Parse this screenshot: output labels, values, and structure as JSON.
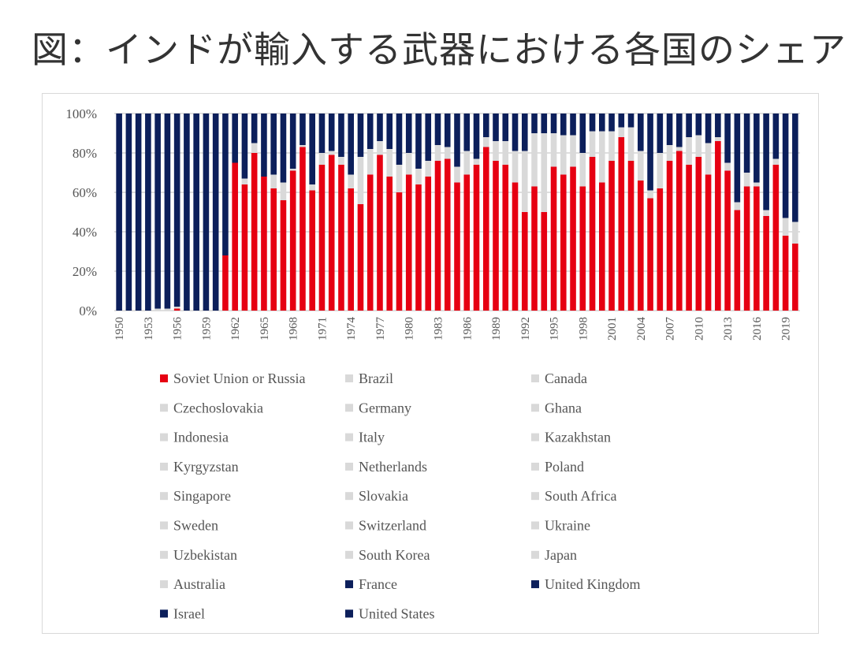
{
  "title": "図：インドが輸入する武器における各国のシェア",
  "colors": {
    "russia": "#e60012",
    "others": "#d9d9d9",
    "western": "#0c1f5b",
    "grid": "#bfbfbf"
  },
  "chart_data": {
    "type": "bar",
    "stacked": true,
    "percent": true,
    "ylim": [
      0,
      100
    ],
    "yticks": [
      "0%",
      "20%",
      "40%",
      "60%",
      "80%",
      "100%"
    ],
    "grid": true,
    "legend_position": "bottom",
    "categories": [
      1950,
      1951,
      1952,
      1953,
      1954,
      1955,
      1956,
      1957,
      1958,
      1959,
      1960,
      1961,
      1962,
      1963,
      1964,
      1965,
      1966,
      1967,
      1968,
      1969,
      1970,
      1971,
      1972,
      1973,
      1974,
      1975,
      1976,
      1977,
      1978,
      1979,
      1980,
      1981,
      1982,
      1983,
      1984,
      1985,
      1986,
      1987,
      1988,
      1989,
      1990,
      1991,
      1992,
      1993,
      1994,
      1995,
      1996,
      1997,
      1998,
      1999,
      2000,
      2001,
      2002,
      2003,
      2004,
      2005,
      2006,
      2007,
      2008,
      2009,
      2010,
      2011,
      2012,
      2013,
      2014,
      2015,
      2016,
      2017,
      2018,
      2019,
      2020
    ],
    "xtick_labels": [
      "1950",
      "1953",
      "1956",
      "1959",
      "1962",
      "1965",
      "1968",
      "1971",
      "1974",
      "1977",
      "1980",
      "1983",
      "1986",
      "1989",
      "1992",
      "1995",
      "1998",
      "2001",
      "2004",
      "2007",
      "2010",
      "2013",
      "2016",
      "2019"
    ],
    "series": [
      {
        "name": "Soviet Union or Russia",
        "group": "russia",
        "values": [
          0,
          0,
          0,
          0,
          0,
          0,
          1,
          0,
          0,
          0,
          0,
          28,
          75,
          64,
          80,
          68,
          62,
          56,
          71,
          83,
          61,
          74,
          79,
          74,
          62,
          54,
          69,
          79,
          68,
          60,
          69,
          64,
          68,
          76,
          77,
          65,
          69,
          74,
          83,
          76,
          74,
          65,
          50,
          63,
          50,
          73,
          69,
          73,
          63,
          78,
          65,
          76,
          88,
          76,
          66,
          57,
          62,
          76,
          81,
          74,
          78,
          69,
          86,
          71,
          51,
          63,
          63,
          48,
          74,
          38,
          34
        ]
      },
      {
        "name": "Others (Brazil, Canada, Czechoslovakia, Germany, Ghana, Indonesia, Italy, Kazakhstan, Kyrgyzstan, Netherlands, Poland, Singapore, Slovakia, South Africa, Sweden, Switzerland, Ukraine, Uzbekistan, South Korea, Japan, Australia)",
        "group": "others",
        "values": [
          0,
          0,
          0,
          0,
          1,
          1,
          1,
          0,
          0,
          0,
          0,
          0,
          0,
          3,
          5,
          0,
          7,
          9,
          1,
          1,
          3,
          6,
          2,
          4,
          7,
          24,
          13,
          7,
          14,
          14,
          11,
          8,
          8,
          8,
          6,
          8,
          12,
          3,
          5,
          10,
          12,
          16,
          31,
          27,
          40,
          17,
          20,
          16,
          17,
          13,
          26,
          15,
          5,
          17,
          15,
          4,
          18,
          8,
          2,
          14,
          11,
          16,
          2,
          4,
          4,
          7,
          2,
          3,
          3,
          9,
          11
        ]
      },
      {
        "name": "Western (France, United Kingdom, Israel, United States)",
        "group": "western",
        "values": [
          100,
          100,
          100,
          100,
          99,
          99,
          98,
          100,
          100,
          100,
          100,
          72,
          25,
          33,
          15,
          32,
          31,
          35,
          28,
          16,
          36,
          20,
          19,
          22,
          31,
          22,
          18,
          14,
          18,
          26,
          20,
          28,
          24,
          16,
          17,
          27,
          19,
          23,
          12,
          14,
          14,
          19,
          19,
          10,
          10,
          10,
          11,
          11,
          20,
          9,
          9,
          9,
          7,
          7,
          19,
          39,
          20,
          16,
          17,
          12,
          11,
          15,
          12,
          25,
          45,
          30,
          35,
          49,
          23,
          53,
          55
        ]
      }
    ],
    "legend": [
      {
        "label": "Soviet Union or Russia",
        "group": "russia"
      },
      {
        "label": "Brazil",
        "group": "others"
      },
      {
        "label": "Canada",
        "group": "others"
      },
      {
        "label": "Czechoslovakia",
        "group": "others"
      },
      {
        "label": "Germany",
        "group": "others"
      },
      {
        "label": "Ghana",
        "group": "others"
      },
      {
        "label": "Indonesia",
        "group": "others"
      },
      {
        "label": "Italy",
        "group": "others"
      },
      {
        "label": "Kazakhstan",
        "group": "others"
      },
      {
        "label": "Kyrgyzstan",
        "group": "others"
      },
      {
        "label": "Netherlands",
        "group": "others"
      },
      {
        "label": "Poland",
        "group": "others"
      },
      {
        "label": "Singapore",
        "group": "others"
      },
      {
        "label": "Slovakia",
        "group": "others"
      },
      {
        "label": "South Africa",
        "group": "others"
      },
      {
        "label": "Sweden",
        "group": "others"
      },
      {
        "label": "Switzerland",
        "group": "others"
      },
      {
        "label": "Ukraine",
        "group": "others"
      },
      {
        "label": "Uzbekistan",
        "group": "others"
      },
      {
        "label": "South Korea",
        "group": "others"
      },
      {
        "label": "Japan",
        "group": "others"
      },
      {
        "label": "Australia",
        "group": "others"
      },
      {
        "label": "France",
        "group": "western"
      },
      {
        "label": "United Kingdom",
        "group": "western"
      },
      {
        "label": "Israel",
        "group": "western"
      },
      {
        "label": "United States",
        "group": "western"
      }
    ]
  }
}
